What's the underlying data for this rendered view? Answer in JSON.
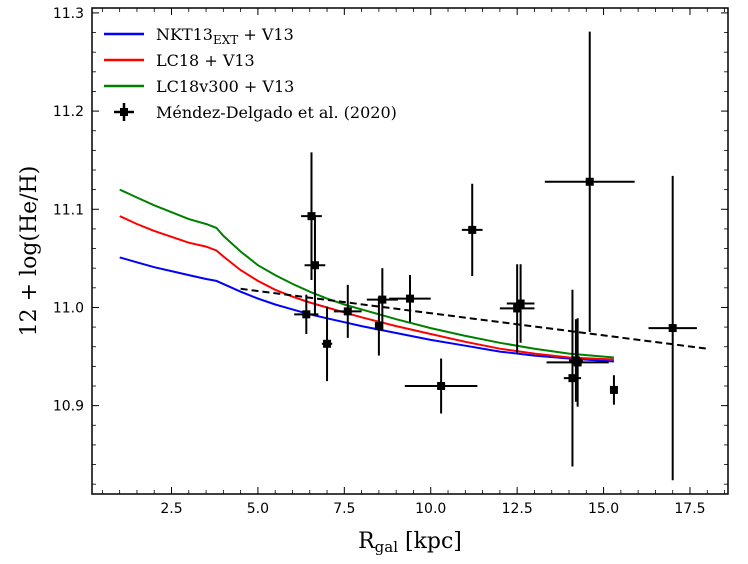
{
  "chart_data": {
    "type": "line",
    "xlabel_main": "R",
    "xlabel_sub": "gal",
    "xlabel_unit": " [kpc]",
    "ylabel": "12 + log(He/H)",
    "xlim": [
      0.2,
      18.6
    ],
    "ylim": [
      10.81,
      11.305
    ],
    "xticks": [
      "2.5",
      "5.0",
      "7.5",
      "10.0",
      "12.5",
      "15.0",
      "17.5"
    ],
    "yticks": [
      "10.9",
      "11.0",
      "11.1",
      "11.2",
      "11.3"
    ],
    "legend_position": "top-left",
    "series": [
      {
        "name": "NKT13",
        "name_sub": "EXT",
        "name_suffix": " + V13",
        "color": "#0000ff",
        "x": [
          1.0,
          1.5,
          2.0,
          2.5,
          3.0,
          3.5,
          3.8,
          4.0,
          4.5,
          5.0,
          5.5,
          6.0,
          6.5,
          7.0,
          7.5,
          8.0,
          9.0,
          10.0,
          11.0,
          12.0,
          13.0,
          14.0,
          15.3
        ],
        "y": [
          11.051,
          11.046,
          11.041,
          11.037,
          11.033,
          11.029,
          11.027,
          11.024,
          11.016,
          11.009,
          11.003,
          10.998,
          10.993,
          10.989,
          10.985,
          10.981,
          10.974,
          10.967,
          10.961,
          10.955,
          10.951,
          10.948,
          10.945
        ]
      },
      {
        "name": "LC18",
        "name_sub": "",
        "name_suffix": " + V13",
        "color": "#ff0000",
        "x": [
          1.0,
          1.5,
          2.0,
          2.5,
          3.0,
          3.5,
          3.8,
          4.0,
          4.5,
          5.0,
          5.5,
          6.0,
          6.5,
          7.0,
          7.5,
          8.0,
          9.0,
          10.0,
          11.0,
          12.0,
          13.0,
          14.0,
          15.3
        ],
        "y": [
          11.093,
          11.085,
          11.078,
          11.072,
          11.066,
          11.062,
          11.058,
          11.052,
          11.038,
          11.027,
          11.018,
          11.011,
          11.005,
          11.0,
          10.995,
          10.99,
          10.981,
          10.973,
          10.965,
          10.958,
          10.953,
          10.949,
          10.947
        ]
      },
      {
        "name": "LC18v300",
        "name_sub": "",
        "name_suffix": " + V13",
        "color": "#008000",
        "x": [
          1.0,
          1.5,
          2.0,
          2.5,
          3.0,
          3.5,
          3.8,
          4.0,
          4.5,
          5.0,
          5.5,
          6.0,
          6.5,
          7.0,
          7.5,
          8.0,
          9.0,
          10.0,
          11.0,
          12.0,
          13.0,
          14.0,
          15.3
        ],
        "y": [
          11.12,
          11.112,
          11.104,
          11.097,
          11.09,
          11.085,
          11.081,
          11.073,
          11.057,
          11.043,
          11.033,
          11.024,
          11.016,
          11.009,
          11.003,
          10.998,
          10.988,
          10.979,
          10.971,
          10.964,
          10.958,
          10.953,
          10.949
        ]
      }
    ],
    "fit": {
      "style": "dashed",
      "color": "#000000",
      "x": [
        4.5,
        18.0
      ],
      "y": [
        11.019,
        10.958
      ]
    },
    "observations": {
      "name": "Méndez-Delgado et al. (2020)",
      "color": "#000000",
      "points": [
        {
          "x": 6.4,
          "y": 10.993,
          "xerr": 0.35,
          "yerr": 0.02
        },
        {
          "x": 6.55,
          "y": 11.093,
          "xerr": 0.3,
          "yerr": 0.065
        },
        {
          "x": 6.65,
          "y": 11.043,
          "xerr": 0.3,
          "yerr": 0.05
        },
        {
          "x": 7.0,
          "y": 10.963,
          "xerr": 0.15,
          "yerr": 0.038
        },
        {
          "x": 7.6,
          "y": 10.996,
          "xerr": 0.4,
          "yerr": 0.027
        },
        {
          "x": 8.5,
          "y": 10.981,
          "xerr": 0.1,
          "yerr": 0.03
        },
        {
          "x": 8.6,
          "y": 11.008,
          "xerr": 0.45,
          "yerr": 0.032
        },
        {
          "x": 9.4,
          "y": 11.009,
          "xerr": 0.6,
          "yerr": 0.024
        },
        {
          "x": 10.3,
          "y": 10.92,
          "xerr": 1.05,
          "yerr": 0.028
        },
        {
          "x": 11.2,
          "y": 11.079,
          "xerr": 0.3,
          "yerr": 0.047
        },
        {
          "x": 12.5,
          "y": 10.999,
          "xerr": 0.5,
          "yerr": 0.045
        },
        {
          "x": 12.6,
          "y": 11.004,
          "xerr": 0.4,
          "yerr": 0.04
        },
        {
          "x": 14.1,
          "y": 10.928,
          "xerr": 0.25,
          "yerr": 0.09
        },
        {
          "x": 14.25,
          "y": 10.944,
          "xerr": 0.9,
          "yerr": 0.045
        },
        {
          "x": 14.2,
          "y": 10.946,
          "xerr": 0.2,
          "yerr": 0.042
        },
        {
          "x": 14.6,
          "y": 11.128,
          "xerr": 1.3,
          "yerr": 0.153
        },
        {
          "x": 15.3,
          "y": 10.916,
          "xerr": 0.1,
          "yerr": 0.015
        },
        {
          "x": 17.0,
          "y": 10.979,
          "xerr": 0.7,
          "yerr": 0.155
        }
      ]
    }
  }
}
